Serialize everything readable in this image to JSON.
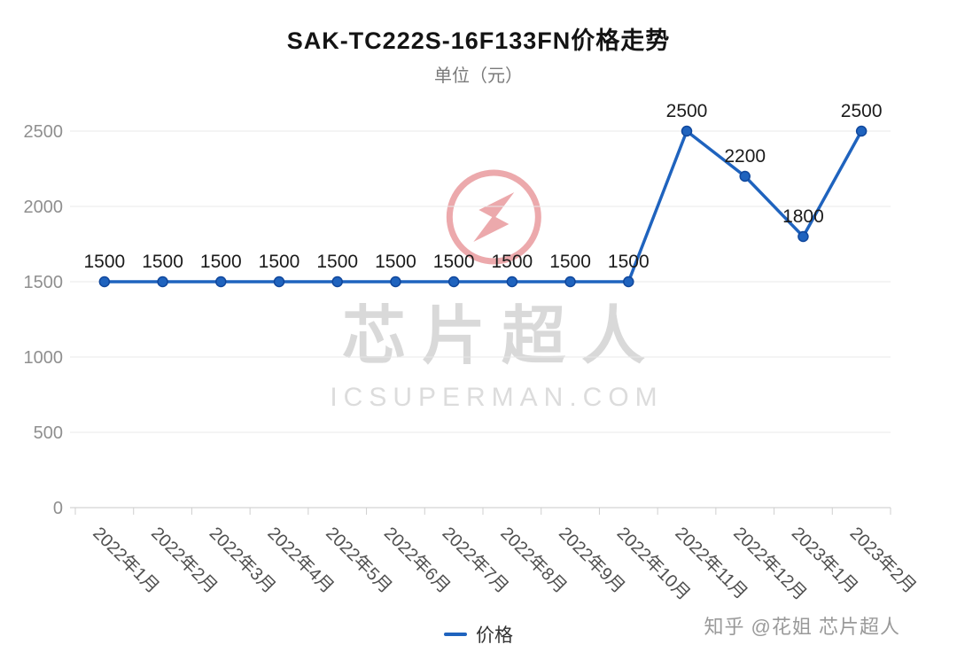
{
  "chart_data": {
    "type": "line",
    "title": "SAK-TC222S-16F133FN价格走势",
    "subtitle": "单位（元）",
    "categories": [
      "2022年1月",
      "2022年2月",
      "2022年3月",
      "2022年4月",
      "2022年5月",
      "2022年6月",
      "2022年7月",
      "2022年8月",
      "2022年9月",
      "2022年10月",
      "2022年11月",
      "2022年12月",
      "2023年1月",
      "2023年2月"
    ],
    "series": [
      {
        "name": "价格",
        "values": [
          1500,
          1500,
          1500,
          1500,
          1500,
          1500,
          1500,
          1500,
          1500,
          1500,
          2500,
          2200,
          1800,
          2500
        ]
      }
    ],
    "ylim": [
      0,
      2500
    ],
    "yticks": [
      0,
      500,
      1000,
      1500,
      2000,
      2500
    ],
    "grid": true,
    "legend_position": "bottom",
    "line_color": "#1F63BE",
    "point_color": "#1F63BE",
    "point_stroke_color": "#10479C"
  },
  "watermark": {
    "text": "芯片超人",
    "domain": "ICSUPERMAN.COM",
    "logo": "icsuperman-logo",
    "logo_color": "#D95359"
  },
  "footer": {
    "credit": "知乎 @花姐 芯片超人"
  }
}
